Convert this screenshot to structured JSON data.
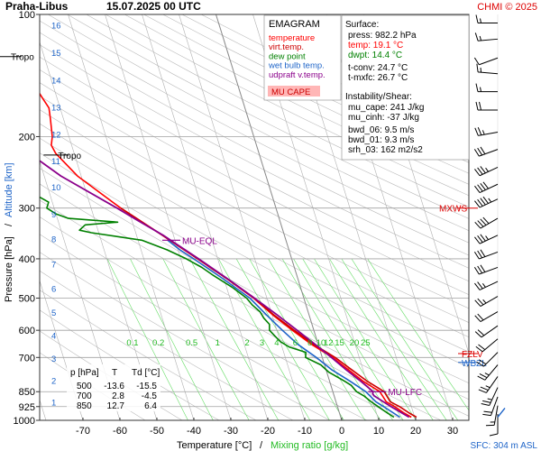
{
  "header": {
    "station": "Praha-Libus",
    "datetime": "15.07.2025 00 UTC",
    "credit": "CHMI © 2025"
  },
  "legend": {
    "title": "EMAGRAM",
    "items": [
      {
        "label": "temperature",
        "color": "#ff0000"
      },
      {
        "label": "virt.temp.",
        "color": "#cc0000"
      },
      {
        "label": "dew point",
        "color": "#008000"
      },
      {
        "label": "wet bulb temp.",
        "color": "#1e64c8"
      },
      {
        "label": "udpraft v.temp.",
        "color": "#8b008b"
      }
    ],
    "mu_cape_label": "MU CAPE"
  },
  "surface": {
    "title": "Surface:",
    "press": "press: 982.2 hPa",
    "temp": "temp: 19.1 °C",
    "dwpt": "dwpt: 14.4 °C",
    "tconv": "t-conv: 24.7 °C",
    "tmxfc": "t-mxfc: 26.7 °C"
  },
  "instability": {
    "title": "Instability/Shear:",
    "lines": [
      "mu_cape: 241 J/kg",
      "mu_cinh: -37 J/kg",
      "bwd_06: 9.5 m/s",
      "bwd_01: 9.3 m/s",
      "srh_03: 162 m2/s2"
    ]
  },
  "table": {
    "headers": [
      "p [hPa]",
      "T",
      "Td [°C]"
    ],
    "rows": [
      [
        "500",
        "-13.6",
        "-15.5"
      ],
      [
        "700",
        "2.8",
        "-4.5"
      ],
      [
        "850",
        "12.7",
        "6.4"
      ]
    ]
  },
  "axes": {
    "xlabel_temp": "Temperature [°C]",
    "xlabel_sep": "/",
    "xlabel_mix": "Mixing ratio [g/kg]",
    "ylabel_p": "Pressure [hPa]",
    "ylabel_sep": "/",
    "ylabel_alt": "Altitude [km]",
    "sfc_label": "SFC: 304 m ASL"
  },
  "chart_data": {
    "type": "line",
    "x_ticks": [
      -70,
      -60,
      -50,
      -40,
      -30,
      -20,
      -10,
      0,
      10,
      20,
      30
    ],
    "xlim": [
      -80,
      30
    ],
    "p_ticks": [
      100,
      200,
      300,
      400,
      500,
      600,
      700,
      850,
      925,
      1000
    ],
    "plim": [
      100,
      1000
    ],
    "alt_ticks": [
      {
        "km": "1",
        "p": 900
      },
      {
        "km": "2",
        "p": 797
      },
      {
        "km": "3",
        "p": 703
      },
      {
        "km": "4",
        "p": 617
      },
      {
        "km": "5",
        "p": 541
      },
      {
        "km": "6",
        "p": 473
      },
      {
        "km": "7",
        "p": 412
      },
      {
        "km": "8",
        "p": 357
      },
      {
        "km": "9",
        "p": 310
      },
      {
        "km": "10",
        "p": 266
      },
      {
        "km": "11",
        "p": 229
      },
      {
        "km": "12",
        "p": 197
      },
      {
        "km": "13",
        "p": 169
      },
      {
        "km": "14",
        "p": 145
      },
      {
        "km": "15",
        "p": 124
      },
      {
        "km": "16",
        "p": 106
      }
    ],
    "mixing_ratio_labels": [
      {
        "label": "0.1",
        "t": -50
      },
      {
        "label": "0.2",
        "t": -43
      },
      {
        "label": "0.5",
        "t": -34
      },
      {
        "label": "1",
        "t": -27
      },
      {
        "label": "2",
        "t": -19
      },
      {
        "label": "3",
        "t": -15
      },
      {
        "label": "4",
        "t": -11
      },
      {
        "label": "6",
        "t": -6
      },
      {
        "label": "8",
        "t": -2
      },
      {
        "label": "10",
        "t": 1
      },
      {
        "label": "12",
        "t": 3
      },
      {
        "label": "15",
        "t": 6
      },
      {
        "label": "20",
        "t": 10
      },
      {
        "label": "25",
        "t": 13
      }
    ],
    "series": [
      {
        "name": "temperature",
        "color": "#ff0000",
        "points": [
          [
            982,
            19.1
          ],
          [
            960,
            17.5
          ],
          [
            925,
            15.5
          ],
          [
            900,
            13.6
          ],
          [
            850,
            12.7
          ],
          [
            800,
            9.0
          ],
          [
            750,
            6.0
          ],
          [
            700,
            2.8
          ],
          [
            650,
            -1.8
          ],
          [
            600,
            -5.8
          ],
          [
            550,
            -9.8
          ],
          [
            500,
            -13.6
          ],
          [
            450,
            -19.0
          ],
          [
            400,
            -25.5
          ],
          [
            350,
            -33.0
          ],
          [
            300,
            -42.0
          ],
          [
            250,
            -51.0
          ],
          [
            220,
            -55.0
          ],
          [
            210,
            -55.5
          ],
          [
            200,
            -54.5
          ],
          [
            180,
            -53.5
          ],
          [
            170,
            -53.0
          ],
          [
            160,
            -54.0
          ],
          [
            150,
            -55.0
          ],
          [
            140,
            -57.0
          ],
          [
            130,
            -57.5
          ],
          [
            125,
            -59.0
          ],
          [
            120,
            -59.5
          ],
          [
            110,
            -59.0
          ],
          [
            100,
            -59.5
          ]
        ]
      },
      {
        "name": "virt.temp.",
        "color": "#cc0000",
        "points": [
          [
            982,
            20.5
          ],
          [
            960,
            18.9
          ],
          [
            925,
            16.8
          ],
          [
            900,
            14.7
          ],
          [
            850,
            13.9
          ],
          [
            800,
            10.1
          ],
          [
            750,
            6.9
          ],
          [
            700,
            3.5
          ],
          [
            650,
            -1.2
          ],
          [
            600,
            -5.3
          ],
          [
            550,
            -9.5
          ],
          [
            500,
            -13.4
          ],
          [
            450,
            -18.9
          ],
          [
            400,
            -25.4
          ],
          [
            350,
            -33.0
          ],
          [
            300,
            -42.0
          ]
        ]
      },
      {
        "name": "dew point",
        "color": "#008000",
        "points": [
          [
            982,
            14.4
          ],
          [
            960,
            13.0
          ],
          [
            925,
            11.0
          ],
          [
            900,
            9.5
          ],
          [
            870,
            8.0
          ],
          [
            850,
            6.4
          ],
          [
            820,
            5.5
          ],
          [
            800,
            4.0
          ],
          [
            760,
            0.5
          ],
          [
            730,
            -1.0
          ],
          [
            700,
            -4.5
          ],
          [
            680,
            -4.0
          ],
          [
            660,
            -8.0
          ],
          [
            640,
            -10.0
          ],
          [
            620,
            -11.0
          ],
          [
            600,
            -12.0
          ],
          [
            580,
            -11.5
          ],
          [
            560,
            -12.5
          ],
          [
            540,
            -13.0
          ],
          [
            520,
            -14.5
          ],
          [
            500,
            -15.5
          ],
          [
            470,
            -18.5
          ],
          [
            440,
            -22.5
          ],
          [
            420,
            -25.0
          ],
          [
            400,
            -28.5
          ],
          [
            380,
            -33.0
          ],
          [
            360,
            -39.0
          ],
          [
            345,
            -52.0
          ],
          [
            340,
            -55.0
          ],
          [
            330,
            -53.0
          ],
          [
            325,
            -44.0
          ],
          [
            318,
            -57.0
          ],
          [
            310,
            -60.0
          ],
          [
            300,
            -62.0
          ],
          [
            290,
            -61.0
          ],
          [
            280,
            -63.5
          ],
          [
            270,
            -62.5
          ],
          [
            255,
            -64.0
          ],
          [
            245,
            -68.0
          ],
          [
            230,
            -69.0
          ],
          [
            220,
            -71.0
          ],
          [
            210,
            -73.0
          ],
          [
            200,
            -76.0
          ],
          [
            190,
            -78.0
          ],
          [
            175,
            -80.0
          ]
        ]
      },
      {
        "name": "wet bulb temp.",
        "color": "#1e64c8",
        "points": [
          [
            982,
            16.0
          ],
          [
            925,
            12.5
          ],
          [
            900,
            10.8
          ],
          [
            850,
            8.9
          ],
          [
            800,
            5.5
          ],
          [
            750,
            1.5
          ],
          [
            700,
            -1.6
          ],
          [
            650,
            -5.5
          ],
          [
            600,
            -8.5
          ],
          [
            550,
            -11.5
          ],
          [
            500,
            -14.6
          ],
          [
            450,
            -20.0
          ],
          [
            400,
            -26.5
          ],
          [
            380,
            -29.5
          ],
          [
            360,
            -32.0
          ]
        ]
      },
      {
        "name": "udpraft v.temp.",
        "color": "#8b008b",
        "points": [
          [
            982,
            18.5
          ],
          [
            925,
            14.5
          ],
          [
            900,
            12.8
          ],
          [
            870,
            10.8
          ],
          [
            860,
            10.6
          ],
          [
            850,
            10.9
          ],
          [
            800,
            8.4
          ],
          [
            750,
            5.4
          ],
          [
            700,
            2.5
          ],
          [
            650,
            -0.8
          ],
          [
            600,
            -4.5
          ],
          [
            550,
            -8.6
          ],
          [
            500,
            -13.4
          ],
          [
            450,
            -18.8
          ],
          [
            400,
            -25.2
          ],
          [
            370,
            -29.6
          ],
          [
            350,
            -32.8
          ],
          [
            320,
            -38.8
          ],
          [
            300,
            -43.0
          ],
          [
            250,
            -55.5
          ],
          [
            200,
            -67.0
          ],
          [
            170,
            -74.0
          ],
          [
            150,
            -80.0
          ]
        ]
      }
    ],
    "tropopause": [
      {
        "label": "Tropo",
        "p": 127,
        "t": -59.5
      },
      {
        "label": "Tropo",
        "p": 222,
        "t": -55.0
      }
    ],
    "levels": [
      {
        "label": "MU-EQL",
        "p": 360,
        "t": -31.0,
        "color": "#8b008b"
      },
      {
        "label": "MU-LFC",
        "p": 850,
        "t": 12.0,
        "color": "#8b008b"
      }
    ],
    "side_levels": [
      {
        "label": "MXWS",
        "p": 300,
        "color": "#dd0000"
      },
      {
        "label": "FZLV",
        "p": 685,
        "color": "#dd0000"
      },
      {
        "label": "WBZL",
        "p": 720,
        "color": "#1e64c8"
      }
    ],
    "wind_barbs": [
      {
        "p": 105,
        "dir": 270,
        "kt": 15
      },
      {
        "p": 115,
        "dir": 265,
        "kt": 15
      },
      {
        "p": 128,
        "dir": 250,
        "kt": 10
      },
      {
        "p": 140,
        "dir": 275,
        "kt": 15
      },
      {
        "p": 155,
        "dir": 270,
        "kt": 15
      },
      {
        "p": 172,
        "dir": 270,
        "kt": 20
      },
      {
        "p": 195,
        "dir": 260,
        "kt": 25
      },
      {
        "p": 215,
        "dir": 250,
        "kt": 30
      },
      {
        "p": 238,
        "dir": 245,
        "kt": 35
      },
      {
        "p": 262,
        "dir": 245,
        "kt": 40
      },
      {
        "p": 285,
        "dir": 245,
        "kt": 45
      },
      {
        "p": 318,
        "dir": 240,
        "kt": 40
      },
      {
        "p": 350,
        "dir": 245,
        "kt": 35
      },
      {
        "p": 385,
        "dir": 250,
        "kt": 30
      },
      {
        "p": 420,
        "dir": 250,
        "kt": 30
      },
      {
        "p": 455,
        "dir": 245,
        "kt": 25
      },
      {
        "p": 495,
        "dir": 240,
        "kt": 25
      },
      {
        "p": 540,
        "dir": 240,
        "kt": 20
      },
      {
        "p": 585,
        "dir": 235,
        "kt": 20
      },
      {
        "p": 630,
        "dir": 230,
        "kt": 20
      },
      {
        "p": 680,
        "dir": 225,
        "kt": 20
      },
      {
        "p": 730,
        "dir": 220,
        "kt": 25
      },
      {
        "p": 780,
        "dir": 215,
        "kt": 25
      },
      {
        "p": 830,
        "dir": 205,
        "kt": 25
      },
      {
        "p": 875,
        "dir": 200,
        "kt": 20
      },
      {
        "p": 920,
        "dir": 190,
        "kt": 15
      },
      {
        "p": 965,
        "dir": 180,
        "kt": 10
      }
    ]
  }
}
